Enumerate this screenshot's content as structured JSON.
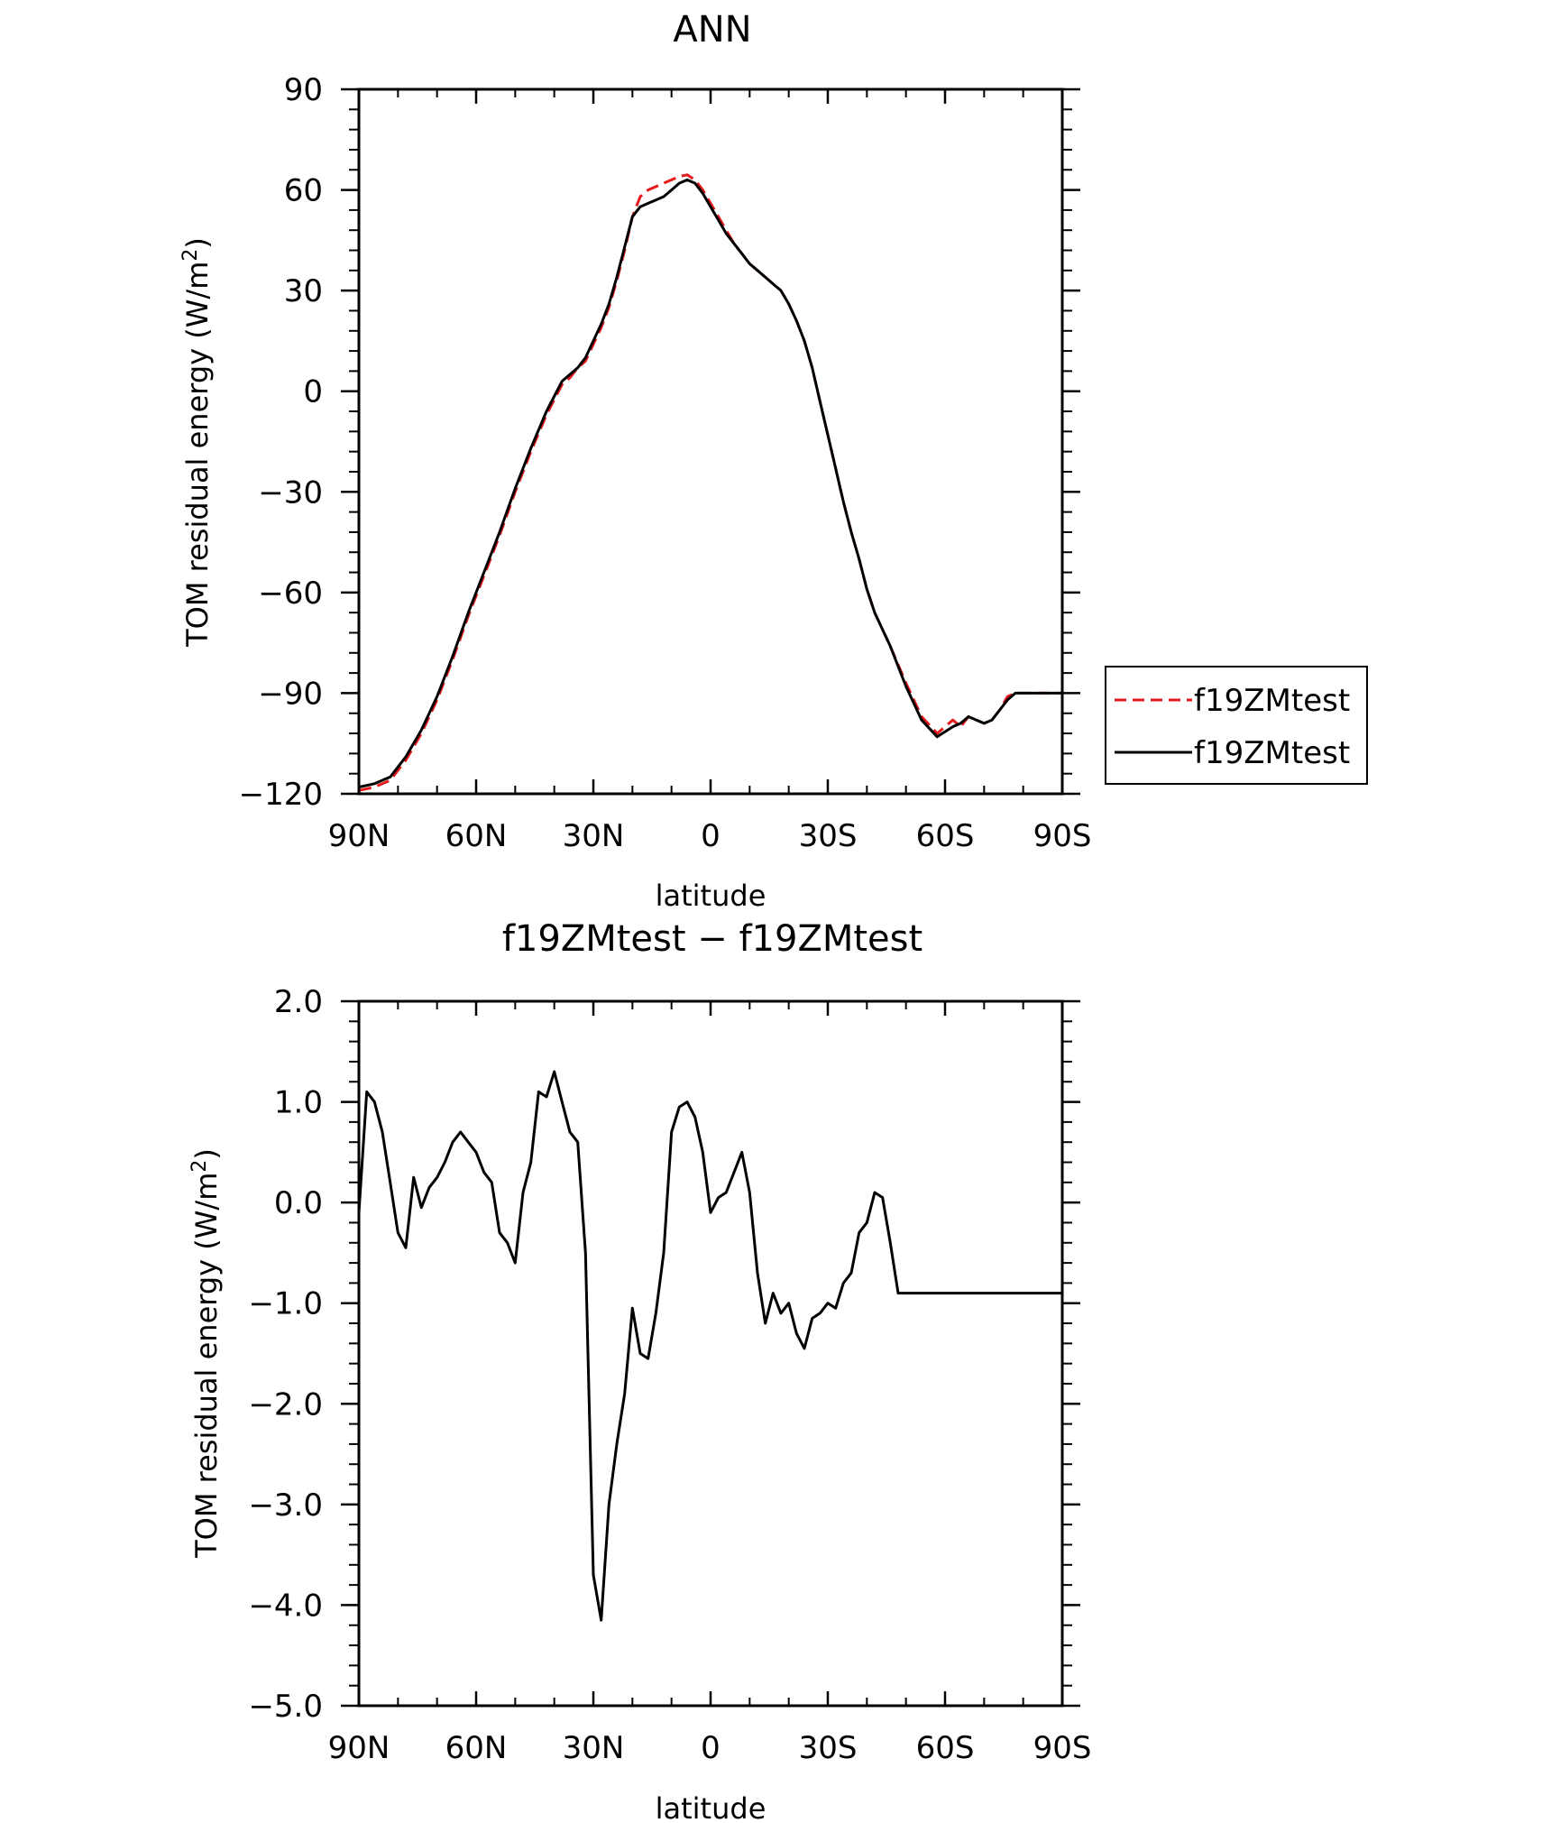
{
  "chart_data": [
    {
      "type": "line",
      "title": "ANN",
      "xlabel": "latitude",
      "ylabel": "TOM residual energy (W/m²)",
      "ylabel_main": "TOM residual energy (W/m",
      "ylabel_sup": "2",
      "ylabel_tail": ")",
      "xlim": [
        90,
        -90
      ],
      "ylim": [
        -120,
        90
      ],
      "xticks": [
        90,
        60,
        30,
        0,
        -30,
        -60,
        -90
      ],
      "xtick_labels": [
        "90N",
        "60N",
        "30N",
        "0",
        "30S",
        "60S",
        "90S"
      ],
      "yticks": [
        -120,
        -90,
        -60,
        -30,
        0,
        30,
        60,
        90
      ],
      "ytick_labels": [
        "−120",
        "−90",
        "−60",
        "−30",
        "0",
        "30",
        "60",
        "90"
      ],
      "legend_position": "right",
      "series": [
        {
          "name": "f19ZMtest",
          "color": "#e41a1c",
          "dash": "dashed",
          "x": [
            90,
            86,
            82,
            78,
            74,
            70,
            66,
            62,
            58,
            54,
            50,
            46,
            42,
            38,
            36,
            34,
            32,
            30,
            28,
            26,
            24,
            22,
            20,
            18,
            16,
            14,
            12,
            10,
            8,
            6,
            4,
            2,
            0,
            -2,
            -4,
            -6,
            -8,
            -10,
            -12,
            -14,
            -16,
            -18,
            -20,
            -22,
            -24,
            -26,
            -28,
            -30,
            -32,
            -34,
            -36,
            -38,
            -40,
            -42,
            -46,
            -50,
            -54,
            -58,
            -62,
            -64,
            -66,
            -68,
            -70,
            -72,
            -74,
            -76,
            -78,
            -80,
            -82,
            -84,
            -86,
            -88,
            -90
          ],
          "y": [
            -119,
            -118,
            -116,
            -110,
            -102,
            -92,
            -80,
            -67,
            -55,
            -43,
            -30,
            -18,
            -7,
            2,
            4,
            7,
            9,
            14,
            19,
            25,
            33,
            42,
            52,
            58,
            60,
            61,
            62,
            63,
            64,
            64.5,
            63,
            60,
            56,
            52,
            48,
            44,
            41,
            38,
            36,
            34,
            32,
            30,
            26,
            21,
            15,
            7,
            -3,
            -13,
            -23,
            -33,
            -42,
            -50,
            -59,
            -66,
            -76,
            -87,
            -97,
            -102,
            -98,
            -100,
            -97,
            -98,
            -99,
            -98,
            -95,
            -91,
            -90,
            -90,
            -90,
            -90,
            -90,
            -90,
            -90
          ]
        },
        {
          "name": "f19ZMtest",
          "color": "#000000",
          "dash": "solid",
          "x": [
            90,
            86,
            82,
            78,
            74,
            70,
            66,
            62,
            58,
            54,
            50,
            46,
            42,
            38,
            36,
            34,
            32,
            30,
            28,
            26,
            24,
            22,
            20,
            18,
            16,
            14,
            12,
            10,
            8,
            6,
            4,
            2,
            0,
            -2,
            -4,
            -6,
            -8,
            -10,
            -12,
            -14,
            -16,
            -18,
            -20,
            -22,
            -24,
            -26,
            -28,
            -30,
            -32,
            -34,
            -36,
            -38,
            -40,
            -42,
            -46,
            -50,
            -54,
            -58,
            -62,
            -64,
            -66,
            -68,
            -70,
            -72,
            -74,
            -76,
            -78,
            -80,
            -82,
            -84,
            -86,
            -88,
            -90
          ],
          "y": [
            -118,
            -117,
            -115,
            -109,
            -101,
            -91,
            -79,
            -66,
            -54,
            -42,
            -29,
            -17,
            -6,
            3,
            5,
            7,
            10,
            15,
            20,
            26,
            34,
            43,
            52,
            55,
            56,
            57,
            58,
            60,
            62,
            63,
            62,
            59,
            55,
            51,
            47,
            44,
            41,
            38,
            36,
            34,
            32,
            30,
            26,
            21,
            15,
            7,
            -3,
            -13,
            -23,
            -33,
            -42,
            -50,
            -59,
            -66,
            -76,
            -88,
            -98,
            -103,
            -100,
            -99,
            -97,
            -98,
            -99,
            -98,
            -95,
            -92,
            -90,
            -90,
            -90,
            -90,
            -90,
            -90,
            -90
          ]
        }
      ]
    },
    {
      "type": "line",
      "title": "f19ZMtest − f19ZMtest",
      "xlabel": "latitude",
      "ylabel": "TOM residual energy (W/m²)",
      "ylabel_main": "TOM residual energy (W/m",
      "ylabel_sup": "2",
      "ylabel_tail": ")",
      "xlim": [
        90,
        -90
      ],
      "ylim": [
        -5,
        2
      ],
      "xticks": [
        90,
        60,
        30,
        0,
        -30,
        -60,
        -90
      ],
      "xtick_labels": [
        "90N",
        "60N",
        "30N",
        "0",
        "30S",
        "60S",
        "90S"
      ],
      "yticks": [
        -5,
        -4,
        -3,
        -2,
        -1,
        0,
        1,
        2
      ],
      "ytick_labels": [
        "−5.0",
        "−4.0",
        "−3.0",
        "−2.0",
        "−1.0",
        "0.0",
        "1.0",
        "2.0"
      ],
      "series": [
        {
          "color": "#000000",
          "dash": "solid",
          "x": [
            90,
            88,
            86,
            84,
            82,
            80,
            78,
            76,
            74,
            72,
            70,
            68,
            66,
            64,
            62,
            60,
            58,
            56,
            54,
            52,
            50,
            48,
            46,
            44,
            42,
            40,
            38,
            36,
            34,
            32,
            30,
            28,
            26,
            24,
            22,
            20,
            18,
            16,
            14,
            12,
            10,
            8,
            6,
            4,
            2,
            0,
            -2,
            -4,
            -6,
            -8,
            -10,
            -12,
            -14,
            -16,
            -18,
            -20,
            -22,
            -24,
            -26,
            -28,
            -30,
            -32,
            -34,
            -36,
            -38,
            -40,
            -42,
            -44,
            -46,
            -48,
            -50,
            -52,
            -54,
            -56,
            -58,
            -60,
            -62,
            -64,
            -66,
            -68,
            -70,
            -72,
            -74,
            -76,
            -78,
            -80,
            -82,
            -84,
            -86,
            -88,
            -90
          ],
          "y": [
            -0.1,
            1.1,
            1.0,
            0.7,
            0.2,
            -0.3,
            -0.45,
            0.25,
            -0.05,
            0.15,
            0.25,
            0.4,
            0.6,
            0.7,
            0.6,
            0.5,
            0.3,
            0.2,
            -0.3,
            -0.4,
            -0.6,
            0.1,
            0.4,
            1.1,
            1.05,
            1.3,
            1.0,
            0.7,
            0.6,
            -0.5,
            -3.7,
            -4.15,
            -3.0,
            -2.4,
            -1.9,
            -1.05,
            -1.5,
            -1.55,
            -1.1,
            -0.5,
            0.7,
            0.95,
            1.0,
            0.85,
            0.5,
            -0.1,
            0.05,
            0.1,
            0.3,
            0.5,
            0.1,
            -0.7,
            -1.2,
            -0.9,
            -1.1,
            -1.0,
            -1.3,
            -1.45,
            -1.15,
            -1.1,
            -1.0,
            -1.05,
            -0.8,
            -0.7,
            -0.3,
            -0.2,
            0.1,
            0.05,
            -0.4,
            -0.9,
            -0.9,
            -0.9,
            -0.9,
            -0.9,
            -0.9,
            -0.9,
            -0.9,
            -0.9,
            -0.9,
            -0.9,
            -0.9,
            -0.9,
            -0.9,
            -0.9,
            -0.9,
            -0.9,
            -0.9,
            -0.9,
            -0.9,
            -0.9,
            -0.9
          ]
        }
      ]
    }
  ]
}
